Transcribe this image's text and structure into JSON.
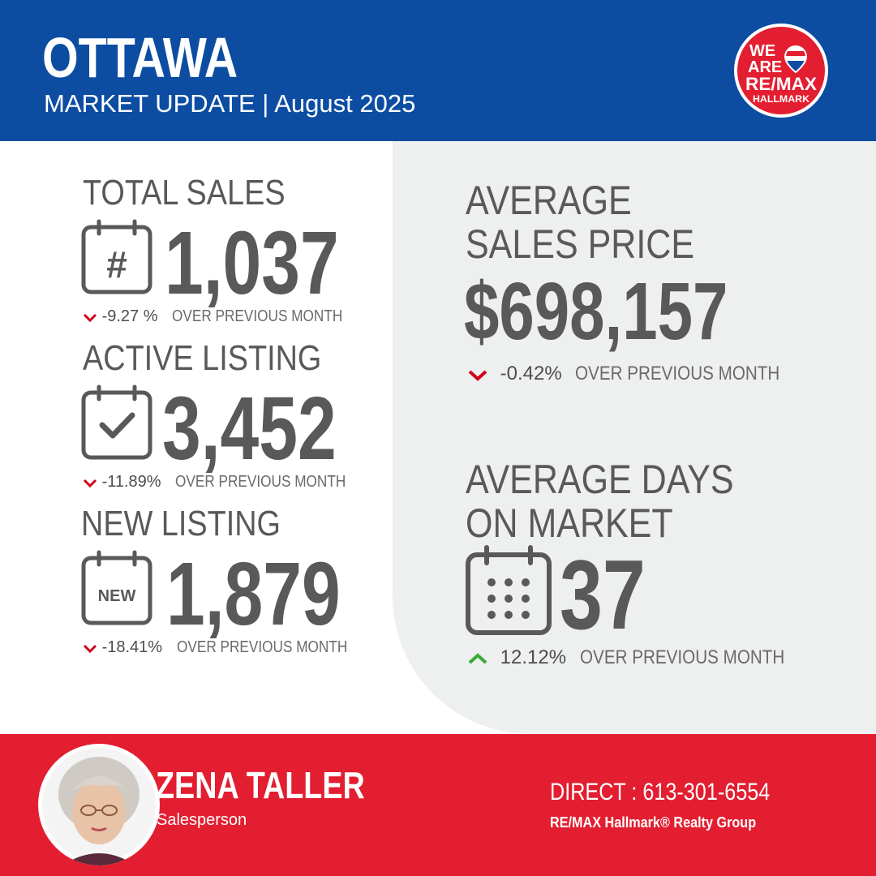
{
  "header": {
    "city": "OTTAWA",
    "subtitle": "MARKET UPDATE | August 2025",
    "logo": {
      "line1": "WE",
      "line2": "ARE",
      "line3": "RE/MAX",
      "line4": "HALLMARK"
    }
  },
  "stats": {
    "total_sales": {
      "label": "TOTAL SALES",
      "value": "1,037",
      "change": "-9.27 %",
      "suffix": "OVER PREVIOUS MONTH",
      "icon": "calendar-hash-icon",
      "trend": "down"
    },
    "active_listing": {
      "label": "ACTIVE LISTING",
      "value": "3,452",
      "change": "-11.89%",
      "suffix": "OVER PREVIOUS MONTH",
      "icon": "calendar-check-icon",
      "trend": "down"
    },
    "new_listing": {
      "label": "NEW LISTING",
      "value": "1,879",
      "change": "-18.41%",
      "suffix": "OVER PREVIOUS MONTH",
      "icon": "calendar-new-icon",
      "icon_text": "NEW",
      "trend": "down"
    },
    "avg_price": {
      "label_line1": "AVERAGE",
      "label_line2": "SALES PRICE",
      "value": "$698,157",
      "change": "-0.42%",
      "suffix": "OVER PREVIOUS MONTH",
      "trend": "down"
    },
    "avg_days": {
      "label_line1": "AVERAGE DAYS",
      "label_line2": "ON MARKET",
      "value": "37",
      "change": "12.12%",
      "suffix": "OVER PREVIOUS MONTH",
      "icon": "calendar-grid-icon",
      "trend": "up"
    }
  },
  "agent": {
    "name": "ZENA TALLER",
    "role": "Salesperson",
    "phone": "DIRECT : 613-301-6554",
    "company": "RE/MAX Hallmark® Realty Group"
  },
  "colors": {
    "header_blue": "#0c4da2",
    "footer_red": "#e31e30",
    "text_grey": "#595959",
    "down_red": "#d0021b",
    "up_green": "#3aaa35",
    "panel_grey": "#eeefef"
  }
}
